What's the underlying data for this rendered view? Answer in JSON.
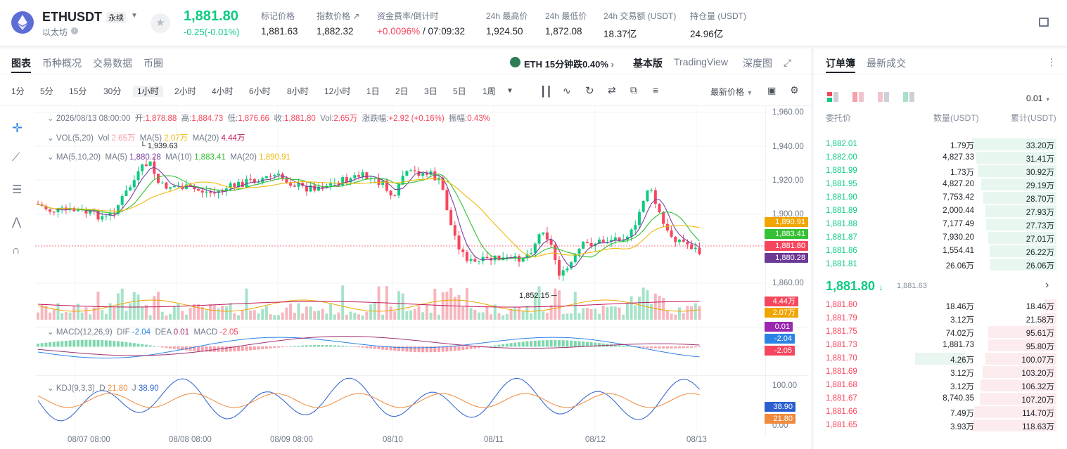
{
  "header": {
    "symbol": "ETHUSDT",
    "contract_type": "永续",
    "sub_name": "以太坊",
    "last_price": "1,881.80",
    "change": "-0.25(-0.01%)",
    "stats": [
      {
        "label": "标记价格",
        "value": "1,881.63"
      },
      {
        "label": "指数价格 ↗",
        "value": "1,882.32"
      },
      {
        "label": "资金费率/倒计时",
        "value": "+0.0096%",
        "value2": " / 07:09:32"
      },
      {
        "label": "24h 最高价",
        "value": "1,924.50"
      },
      {
        "label": "24h 最低价",
        "value": "1,872.08"
      },
      {
        "label": "24h 交易额 (USDT)",
        "value": "18.37亿"
      },
      {
        "label": "持仓量 (USDT)",
        "value": "24.96亿"
      }
    ]
  },
  "chart_nav": {
    "tabs": [
      "图表",
      "币种概况",
      "交易数据",
      "币圈"
    ],
    "alert": "ETH 15分钟跌0.40%",
    "views": [
      "基本版",
      "TradingView",
      "深度图"
    ]
  },
  "intervals": [
    "1分",
    "5分",
    "15分",
    "30分",
    "1小时",
    "2小时",
    "4小时",
    "6小时",
    "8小时",
    "12小时",
    "1日",
    "2日",
    "3日",
    "5日",
    "1周"
  ],
  "price_type": "最新价格",
  "legends": {
    "ohlc": {
      "date": "2026/08/13 08:00:00",
      "open_l": "开:",
      "open": "1,878.88",
      "high_l": "高:",
      "high": "1,884.73",
      "low_l": "低:",
      "low": "1,876.66",
      "close_l": "收:",
      "close": "1,881.80",
      "vol_l": "Vol:",
      "vol": "2.65万",
      "chg_l": "涨跌幅:",
      "chg": "+2.92 (+0.16%)",
      "amp_l": "振幅:",
      "amp": "0.43%"
    },
    "vol": {
      "title": "VOL(5,20)",
      "vol_l": "Vol",
      "vol": "2.65万",
      "ma5_l": "MA(5)",
      "ma5": "2.07万",
      "ma20_l": "MA(20)",
      "ma20": "4.44万"
    },
    "ma": {
      "title": "MA(5,10,20)",
      "ma5_l": "MA(5)",
      "ma5": "1,880.28",
      "ma10_l": "MA(10)",
      "ma10": "1,883.41",
      "ma20_l": "MA(20)",
      "ma20": "1,890.91"
    },
    "macd": {
      "title": "MACD(12,26,9)",
      "dif_l": "DIF",
      "dif": "-2.04",
      "dea_l": "DEA",
      "dea": "0.01",
      "macd_l": "MACD",
      "macd": "-2.05"
    },
    "kdj": {
      "title": "KDJ(9,3,3)",
      "d_l": "D",
      "d": "21.80",
      "j_l": "J",
      "j": "38.90"
    }
  },
  "annotations": {
    "high": "1,939.63",
    "low": "1,852.15"
  },
  "y_axis": [
    "1,960.00",
    "1,940.00",
    "1,920.00",
    "1,900.00",
    "1,860.00"
  ],
  "kdj_axis": [
    "100.00",
    "0.00"
  ],
  "price_labels": {
    "ma20": "1,890.91",
    "ma10": "1,883.41",
    "last": "1,881.80",
    "ma5": "1,880.28",
    "vol_ma20": "4.44万",
    "vol_ma5": "2.07万",
    "dea": "0.01",
    "dif": "-2.04",
    "macd": "-2.05",
    "j": "38.90",
    "d": "21.80"
  },
  "x_axis": [
    "08/07 08:00",
    "08/08 08:00",
    "08/09 08:00",
    "08/10",
    "08/11",
    "08/12",
    "08/13"
  ],
  "orderbook": {
    "tabs": [
      "订单簿",
      "最新成交"
    ],
    "precision": "0.01",
    "headers": [
      "委托价",
      "数量(USDT)",
      "累计(USDT)"
    ],
    "asks": [
      {
        "p": "1,882.01",
        "q": "1.79万",
        "c": "33.20万",
        "d": 0.92
      },
      {
        "p": "1,882.00",
        "q": "4,827.33",
        "c": "31.41万",
        "d": 0.88
      },
      {
        "p": "1,881.99",
        "q": "1.73万",
        "c": "30.92万",
        "d": 0.86
      },
      {
        "p": "1,881.95",
        "q": "4,827.20",
        "c": "29.19万",
        "d": 0.82
      },
      {
        "p": "1,881.90",
        "q": "7,753.42",
        "c": "28.70万",
        "d": 0.8
      },
      {
        "p": "1,881.89",
        "q": "2,000.44",
        "c": "27.93万",
        "d": 0.78
      },
      {
        "p": "1,881.88",
        "q": "7,177.49",
        "c": "27.73万",
        "d": 0.77
      },
      {
        "p": "1,881.87",
        "q": "7,930.20",
        "c": "27.01万",
        "d": 0.75
      },
      {
        "p": "1,881.86",
        "q": "1,554.41",
        "c": "26.22万",
        "d": 0.73
      },
      {
        "p": "1,881.81",
        "q": "26.06万",
        "c": "26.06万",
        "d": 0.72
      }
    ],
    "mid": "1,881.80",
    "mid_sub": "1,881.63",
    "bids": [
      {
        "p": "1,881.80",
        "q": "18.46万",
        "c": "18.46万",
        "d": 0.14
      },
      {
        "p": "1,881.79",
        "q": "3.12万",
        "c": "21.58万",
        "d": 0.17
      },
      {
        "p": "1,881.75",
        "q": "74.02万",
        "c": "95.61万",
        "d": 0.75
      },
      {
        "p": "1,881.73",
        "q": "1,881.73",
        "c": "95.80万",
        "d": 0.75
      },
      {
        "p": "1,881.70",
        "q": "4.26万",
        "c": "100.07万",
        "d": 0.78,
        "q_d": 0.55
      },
      {
        "p": "1,881.69",
        "q": "3.12万",
        "c": "103.20万",
        "d": 0.81
      },
      {
        "p": "1,881.68",
        "q": "3.12万",
        "c": "106.32万",
        "d": 0.83
      },
      {
        "p": "1,881.67",
        "q": "8,740.35",
        "c": "107.20万",
        "d": 0.84
      },
      {
        "p": "1,881.66",
        "q": "7.49万",
        "c": "114.70万",
        "d": 0.9
      },
      {
        "p": "1,881.65",
        "q": "3.93万",
        "c": "118.63万",
        "d": 0.93
      }
    ]
  },
  "colors": {
    "up": "#0ecb81",
    "down": "#f6465d",
    "ma5": "#7b3fa0",
    "ma10": "#30c030",
    "ma20": "#f0b90b",
    "dif": "#2b83e6",
    "dea": "#a03070"
  }
}
